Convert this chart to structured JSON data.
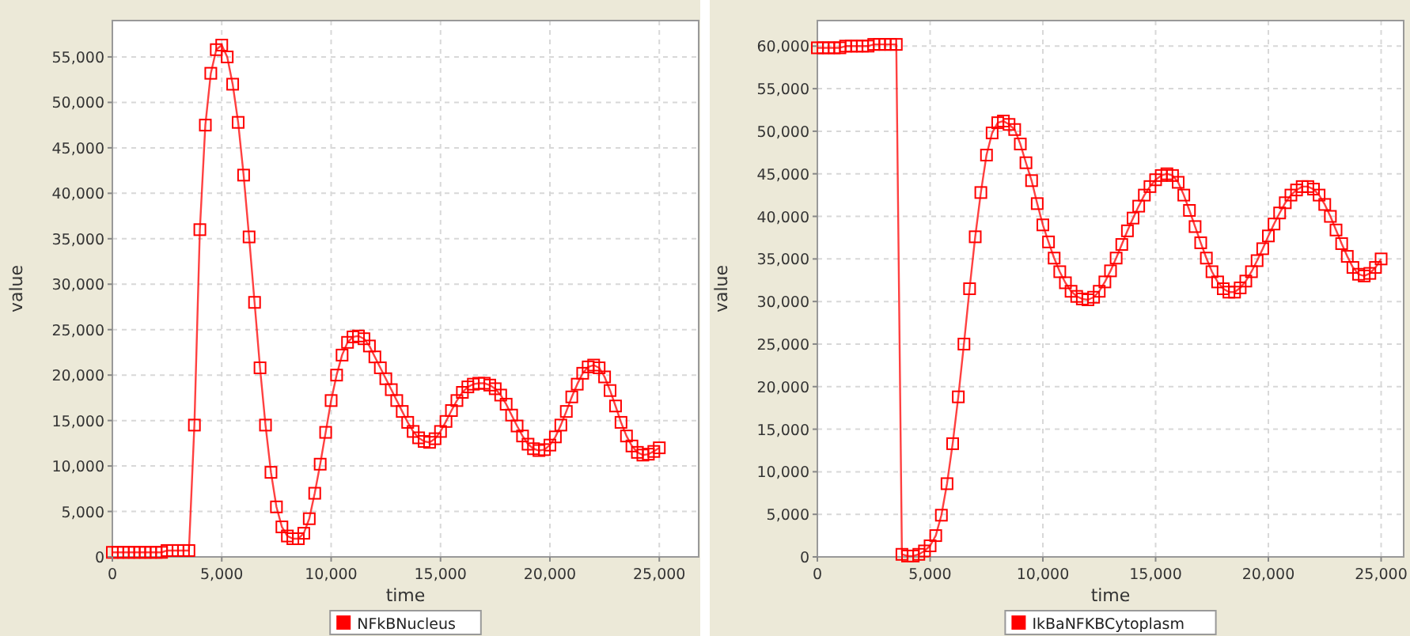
{
  "chart_data": [
    {
      "type": "line",
      "xlabel": "time",
      "ylabel": "value",
      "xlim": [
        0,
        26800
      ],
      "ylim": [
        0,
        59000
      ],
      "xticks": [
        {
          "value": 0,
          "label": "0"
        },
        {
          "value": 5000,
          "label": "5,000"
        },
        {
          "value": 10000,
          "label": "10,000"
        },
        {
          "value": 15000,
          "label": "15,000"
        },
        {
          "value": 20000,
          "label": "20,000"
        },
        {
          "value": 25000,
          "label": "25,000"
        }
      ],
      "yticks": [
        {
          "value": 0,
          "label": "0"
        },
        {
          "value": 5000,
          "label": "5,000"
        },
        {
          "value": 10000,
          "label": "10,000"
        },
        {
          "value": 15000,
          "label": "15,000"
        },
        {
          "value": 20000,
          "label": "20,000"
        },
        {
          "value": 25000,
          "label": "25,000"
        },
        {
          "value": 30000,
          "label": "30,000"
        },
        {
          "value": 35000,
          "label": "35,000"
        },
        {
          "value": 40000,
          "label": "40,000"
        },
        {
          "value": 45000,
          "label": "45,000"
        },
        {
          "value": 50000,
          "label": "50,000"
        },
        {
          "value": 55000,
          "label": "55,000"
        }
      ],
      "grid": true,
      "legend": "bottom",
      "marker": "square",
      "line_style": "solid",
      "x": [
        0,
        250,
        500,
        750,
        1000,
        1250,
        1500,
        1750,
        2000,
        2250,
        2500,
        2750,
        3000,
        3250,
        3500,
        3750,
        4000,
        4250,
        4500,
        4750,
        5000,
        5250,
        5500,
        5750,
        6000,
        6250,
        6500,
        6750,
        7000,
        7250,
        7500,
        7750,
        8000,
        8250,
        8500,
        8750,
        9000,
        9250,
        9500,
        9750,
        10000,
        10250,
        10500,
        10750,
        11000,
        11250,
        11500,
        11750,
        12000,
        12250,
        12500,
        12750,
        13000,
        13250,
        13500,
        13750,
        14000,
        14250,
        14500,
        14750,
        15000,
        15250,
        15500,
        15750,
        16000,
        16250,
        16500,
        16750,
        17000,
        17250,
        17500,
        17750,
        18000,
        18250,
        18500,
        18750,
        19000,
        19250,
        19500,
        19750,
        20000,
        20250,
        20500,
        20750,
        21000,
        21250,
        21500,
        21750,
        22000,
        22250,
        22500,
        22750,
        23000,
        23250,
        23500,
        23750,
        24000,
        24250,
        24500,
        24750,
        25000
      ],
      "series": [
        {
          "name": "NFkBNucleus",
          "color": "#ff0000",
          "values": [
            500,
            500,
            500,
            500,
            500,
            500,
            500,
            500,
            500,
            500,
            700,
            700,
            700,
            700,
            700,
            14500,
            36000,
            47500,
            53200,
            55800,
            56300,
            55000,
            52000,
            47800,
            42000,
            35200,
            28000,
            20800,
            14500,
            9300,
            5500,
            3300,
            2300,
            2000,
            2000,
            2600,
            4200,
            7000,
            10200,
            13700,
            17200,
            20000,
            22200,
            23600,
            24200,
            24300,
            24000,
            23200,
            22000,
            20800,
            19600,
            18400,
            17200,
            16000,
            14800,
            13800,
            13100,
            12700,
            12600,
            13000,
            13800,
            14900,
            16100,
            17200,
            18100,
            18700,
            19000,
            19100,
            19100,
            18900,
            18500,
            17800,
            16800,
            15600,
            14400,
            13300,
            12400,
            11900,
            11700,
            11800,
            12300,
            13200,
            14500,
            16000,
            17600,
            19000,
            20200,
            20900,
            21100,
            20800,
            19800,
            18300,
            16600,
            14800,
            13300,
            12200,
            11500,
            11200,
            11300,
            11600,
            12000
          ]
        }
      ]
    },
    {
      "type": "line",
      "xlabel": "time",
      "ylabel": "value",
      "xlim": [
        0,
        26000
      ],
      "ylim": [
        0,
        63000
      ],
      "xticks": [
        {
          "value": 0,
          "label": "0"
        },
        {
          "value": 5000,
          "label": "5,000"
        },
        {
          "value": 10000,
          "label": "10,000"
        },
        {
          "value": 15000,
          "label": "15,000"
        },
        {
          "value": 20000,
          "label": "20,000"
        },
        {
          "value": 25000,
          "label": "25,000"
        }
      ],
      "yticks": [
        {
          "value": 0,
          "label": "0"
        },
        {
          "value": 5000,
          "label": "5,000"
        },
        {
          "value": 10000,
          "label": "10,000"
        },
        {
          "value": 15000,
          "label": "15,000"
        },
        {
          "value": 20000,
          "label": "20,000"
        },
        {
          "value": 25000,
          "label": "25,000"
        },
        {
          "value": 30000,
          "label": "30,000"
        },
        {
          "value": 35000,
          "label": "35,000"
        },
        {
          "value": 40000,
          "label": "40,000"
        },
        {
          "value": 45000,
          "label": "45,000"
        },
        {
          "value": 50000,
          "label": "50,000"
        },
        {
          "value": 55000,
          "label": "55,000"
        },
        {
          "value": 60000,
          "label": "60,000"
        }
      ],
      "grid": true,
      "legend": "bottom",
      "marker": "square",
      "line_style": "solid",
      "x": [
        0,
        250,
        500,
        750,
        1000,
        1250,
        1500,
        1750,
        2000,
        2250,
        2500,
        2750,
        3000,
        3250,
        3500,
        3750,
        4000,
        4250,
        4500,
        4750,
        5000,
        5250,
        5500,
        5750,
        6000,
        6250,
        6500,
        6750,
        7000,
        7250,
        7500,
        7750,
        8000,
        8250,
        8500,
        8750,
        9000,
        9250,
        9500,
        9750,
        10000,
        10250,
        10500,
        10750,
        11000,
        11250,
        11500,
        11750,
        12000,
        12250,
        12500,
        12750,
        13000,
        13250,
        13500,
        13750,
        14000,
        14250,
        14500,
        14750,
        15000,
        15250,
        15500,
        15750,
        16000,
        16250,
        16500,
        16750,
        17000,
        17250,
        17500,
        17750,
        18000,
        18250,
        18500,
        18750,
        19000,
        19250,
        19500,
        19750,
        20000,
        20250,
        20500,
        20750,
        21000,
        21250,
        21500,
        21750,
        22000,
        22250,
        22500,
        22750,
        23000,
        23250,
        23500,
        23750,
        24000,
        24250,
        24500,
        24750,
        25000
      ],
      "series": [
        {
          "name": "IkBaNFKBCytoplasm",
          "color": "#ff0000",
          "values": [
            59800,
            59800,
            59800,
            59800,
            59800,
            60000,
            60000,
            60000,
            60000,
            60000,
            60200,
            60200,
            60200,
            60200,
            60200,
            300,
            100,
            100,
            300,
            700,
            1300,
            2500,
            4900,
            8600,
            13300,
            18800,
            25000,
            31500,
            37600,
            42800,
            47200,
            49800,
            51000,
            51200,
            50800,
            50200,
            48500,
            46300,
            44200,
            41500,
            39000,
            37000,
            35100,
            33500,
            32200,
            31200,
            30600,
            30300,
            30200,
            30500,
            31200,
            32300,
            33600,
            35100,
            36700,
            38300,
            39800,
            41200,
            42500,
            43500,
            44300,
            44800,
            45000,
            44800,
            44000,
            42500,
            40700,
            38800,
            36900,
            35100,
            33500,
            32300,
            31500,
            31100,
            31100,
            31600,
            32400,
            33500,
            34800,
            36200,
            37700,
            39100,
            40400,
            41600,
            42500,
            43100,
            43500,
            43500,
            43200,
            42500,
            41400,
            40000,
            38400,
            36800,
            35300,
            34000,
            33200,
            33000,
            33300,
            34000,
            35000
          ]
        }
      ]
    }
  ]
}
